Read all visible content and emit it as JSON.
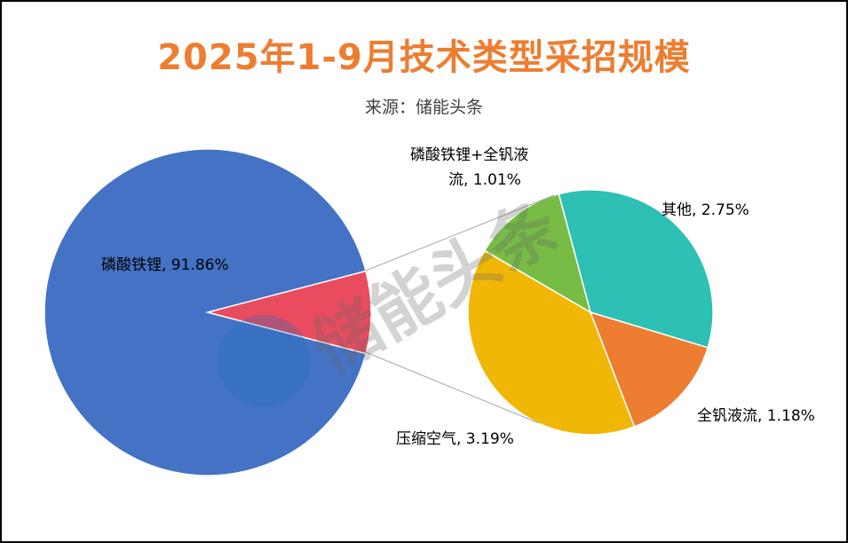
{
  "chart_data": {
    "type": "pie",
    "subtype": "pie-of-pie",
    "title": "2025年1-9月技术类型采招规模",
    "subtitle": "来源：储能头条",
    "watermark": "储能头条",
    "primary": [
      {
        "label": "磷酸铁锂, 91.86%",
        "value": 91.86,
        "color": "#4472C4"
      },
      {
        "label": "",
        "value": 8.13,
        "color": "#E84C5E"
      }
    ],
    "secondary": [
      {
        "label": "其他, 2.75%",
        "value": 2.75,
        "color": "#2EC0B4"
      },
      {
        "label": "全钒液流, 1.18%",
        "value": 1.18,
        "color": "#ED7D31"
      },
      {
        "label": "压缩空气, 3.19%",
        "value": 3.19,
        "color": "#F1B707"
      },
      {
        "label_lines": [
          "磷酸铁锂+全钒液",
          "流, 1.01%"
        ],
        "value": 1.01,
        "color": "#76BC45"
      }
    ]
  }
}
